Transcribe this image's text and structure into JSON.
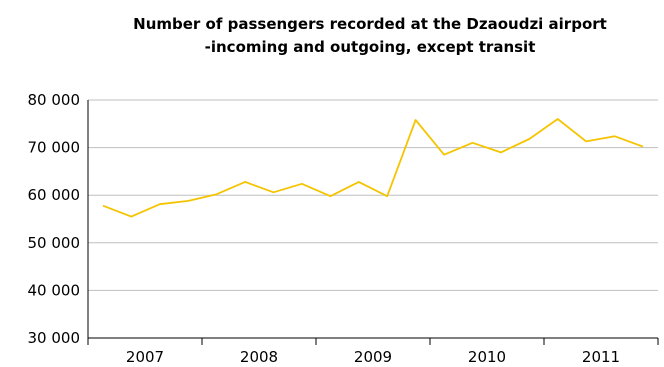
{
  "chart_data": {
    "type": "line",
    "title_lines": [
      "Number of passengers recorded at the Dzaoudzi airport",
      "-incoming and outgoing, except transit"
    ],
    "xlabel": "",
    "ylabel": "",
    "x_tick_labels": [
      "2007",
      "2008",
      "2009",
      "2010",
      "2011"
    ],
    "y_ticks": [
      30000,
      40000,
      50000,
      60000,
      70000,
      80000
    ],
    "y_tick_labels": [
      "30 000",
      "40 000",
      "50 000",
      "60 000",
      "70 000",
      "80 000"
    ],
    "ylim": [
      30000,
      80000
    ],
    "grid": "horizontal",
    "line_color": "#f5c400",
    "axis_color": "#000000",
    "grid_color": "#bfbfbf",
    "series": [
      {
        "values": [
          57800,
          55500,
          58100,
          58800,
          60200,
          62800,
          60600,
          62400,
          59800,
          62800,
          59800,
          75800,
          68500,
          71000,
          69000,
          71800,
          76000,
          71300,
          72400,
          70200
        ]
      }
    ]
  }
}
